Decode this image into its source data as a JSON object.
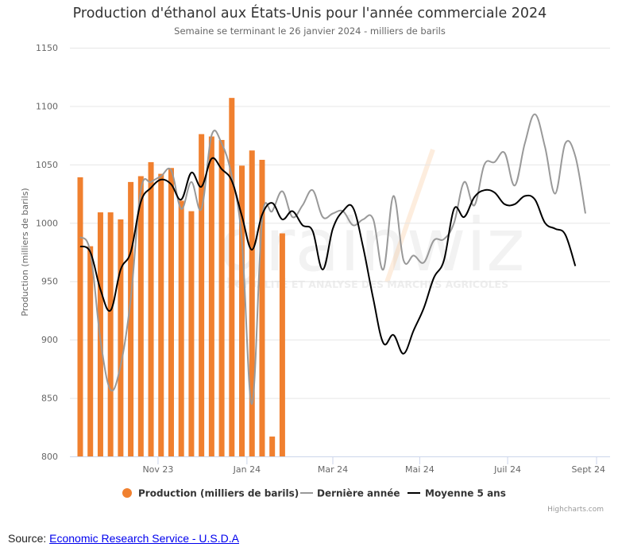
{
  "chart_data": {
    "type": "bar",
    "title": "Production d'éthanol aux États-Unis pour l'année commerciale 2024",
    "subtitle": "Semaine se terminant le 26 janvier 2024 - milliers de barils",
    "ylabel": "Production (milliers de barils)",
    "xlabel": "",
    "ylim": [
      800,
      1150
    ],
    "yticks": [
      "800",
      "850",
      "900",
      "950",
      "1000",
      "1050",
      "1100",
      "1150"
    ],
    "ytick_values": [
      800,
      850,
      900,
      950,
      1000,
      1050,
      1100,
      1150
    ],
    "grid": true,
    "weeks": 52,
    "xticks": [
      {
        "label": "Nov 23",
        "week": 7.7
      },
      {
        "label": "Jan 24",
        "week": 16.5
      },
      {
        "label": "Mar 24",
        "week": 25.0
      },
      {
        "label": "Mai 24",
        "week": 33.6
      },
      {
        "label": "Juil 24",
        "week": 42.3
      },
      {
        "label": "Sept 24",
        "week": 51.1
      }
    ],
    "legend_position": "bottom",
    "series": [
      {
        "name": "Production (milliers de barils)",
        "type": "column",
        "color": "#f0802f",
        "values": [
          1039,
          980,
          1009,
          1009,
          1003,
          1035,
          1040,
          1052,
          1042,
          1047,
          1019,
          1010,
          1076,
          1074,
          1071,
          1107,
          1049,
          1062,
          1054,
          817,
          991
        ]
      },
      {
        "name": "Dernière année",
        "type": "spline",
        "color": "#999999",
        "values": [
          988,
          975,
          900,
          857,
          878,
          935,
          1028,
          1035,
          1040,
          1045,
          1012,
          1035,
          1012,
          1075,
          1068,
          1040,
          985,
          845,
          1003,
          1010,
          1027,
          1005,
          1015,
          1028,
          1005,
          1008,
          1010,
          998,
          1003,
          1003,
          960,
          1023,
          968,
          972,
          966,
          985,
          986,
          1000,
          1035,
          1015,
          1050,
          1052,
          1060,
          1032,
          1068,
          1093,
          1065,
          1025,
          1068,
          1057,
          1008
        ]
      },
      {
        "name": "Moyenne 5 ans",
        "type": "spline",
        "color": "#000000",
        "values": [
          980,
          975,
          943,
          925,
          960,
          975,
          1018,
          1030,
          1037,
          1033,
          1020,
          1043,
          1031,
          1055,
          1046,
          1036,
          1006,
          977,
          1007,
          1017,
          1003,
          1010,
          998,
          993,
          960,
          995,
          1010,
          1013,
          979,
          935,
          897,
          904,
          888,
          908,
          927,
          953,
          968,
          1012,
          1005,
          1022,
          1028,
          1026,
          1016,
          1016,
          1023,
          1020,
          1000,
          995,
          990,
          963
        ]
      }
    ]
  },
  "watermark": {
    "brand": "grainwiz",
    "tagline": "ACTUALITÉ ET ANALYSE DES MARCHÉS AGRICOLES"
  },
  "credits": "Highcharts.com",
  "source": {
    "label": "Source: ",
    "link_text": "Economic Research Service - U.S.D.A"
  },
  "colors": {
    "bar": "#f0802f",
    "last_year": "#999999",
    "avg5": "#000000",
    "grid": "#e6e6e6",
    "axis": "#ccd6eb"
  }
}
